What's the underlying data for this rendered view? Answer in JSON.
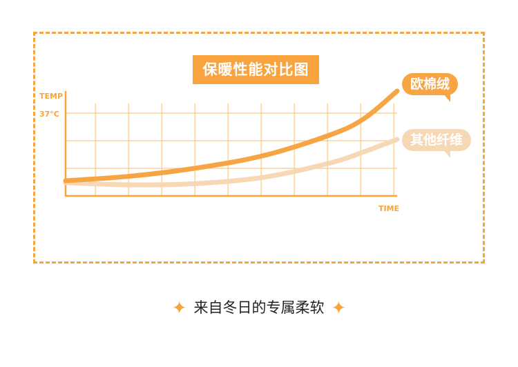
{
  "chart_data": {
    "type": "line",
    "title": "保暖性能对比图",
    "xlabel": "TIME",
    "ylabel": "TEMP",
    "ytick_labels": [
      "37°C"
    ],
    "x": [
      0,
      2,
      4,
      6,
      8,
      9,
      10
    ],
    "series": [
      {
        "name": "欧棉绒",
        "values": [
          0.55,
          0.72,
          1.02,
          1.47,
          2.22,
          2.8,
          3.8
        ],
        "color": "#f6a444"
      },
      {
        "name": "其他纤维",
        "values": [
          0.48,
          0.4,
          0.45,
          0.68,
          1.2,
          1.6,
          2.05
        ],
        "color": "#f6d8b4"
      }
    ],
    "ylim": [
      0,
      4
    ],
    "xlim": [
      0,
      10
    ],
    "grid": true,
    "legend_placement": "right"
  },
  "footer": {
    "text": "来自冬日的专属柔软",
    "icon": "sparkle-icon"
  },
  "colors": {
    "accent": "#f7a43a"
  }
}
